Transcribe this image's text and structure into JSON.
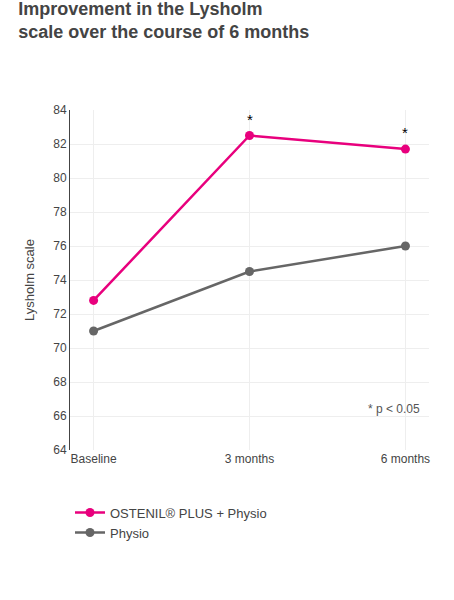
{
  "chart_data": {
    "type": "line",
    "title": "Improvement in the Lysholm\nscale over the course of 6 months",
    "ylabel": "Lysholm scale",
    "categories": [
      "Baseline",
      "3 months",
      "6 months"
    ],
    "series": [
      {
        "name": "OSTENIL® PLUS + Physio",
        "color": "#E8007D",
        "values": [
          72.8,
          82.5,
          81.7
        ],
        "marker": "circle",
        "line_style": "solid"
      },
      {
        "name": "Physio",
        "color": "#666666",
        "values": [
          71.0,
          74.5,
          76.0
        ],
        "marker": "circle",
        "line_style": "solid"
      }
    ],
    "ylim": [
      64,
      84
    ],
    "yticks": [
      64,
      66,
      68,
      70,
      72,
      74,
      76,
      78,
      80,
      82,
      84
    ],
    "grid": true,
    "legend": "bottom",
    "annotations": [
      {
        "text": "*",
        "x": "3 months"
      },
      {
        "text": "*",
        "x": "6 months"
      },
      {
        "text": "* p < 0.05"
      }
    ]
  }
}
